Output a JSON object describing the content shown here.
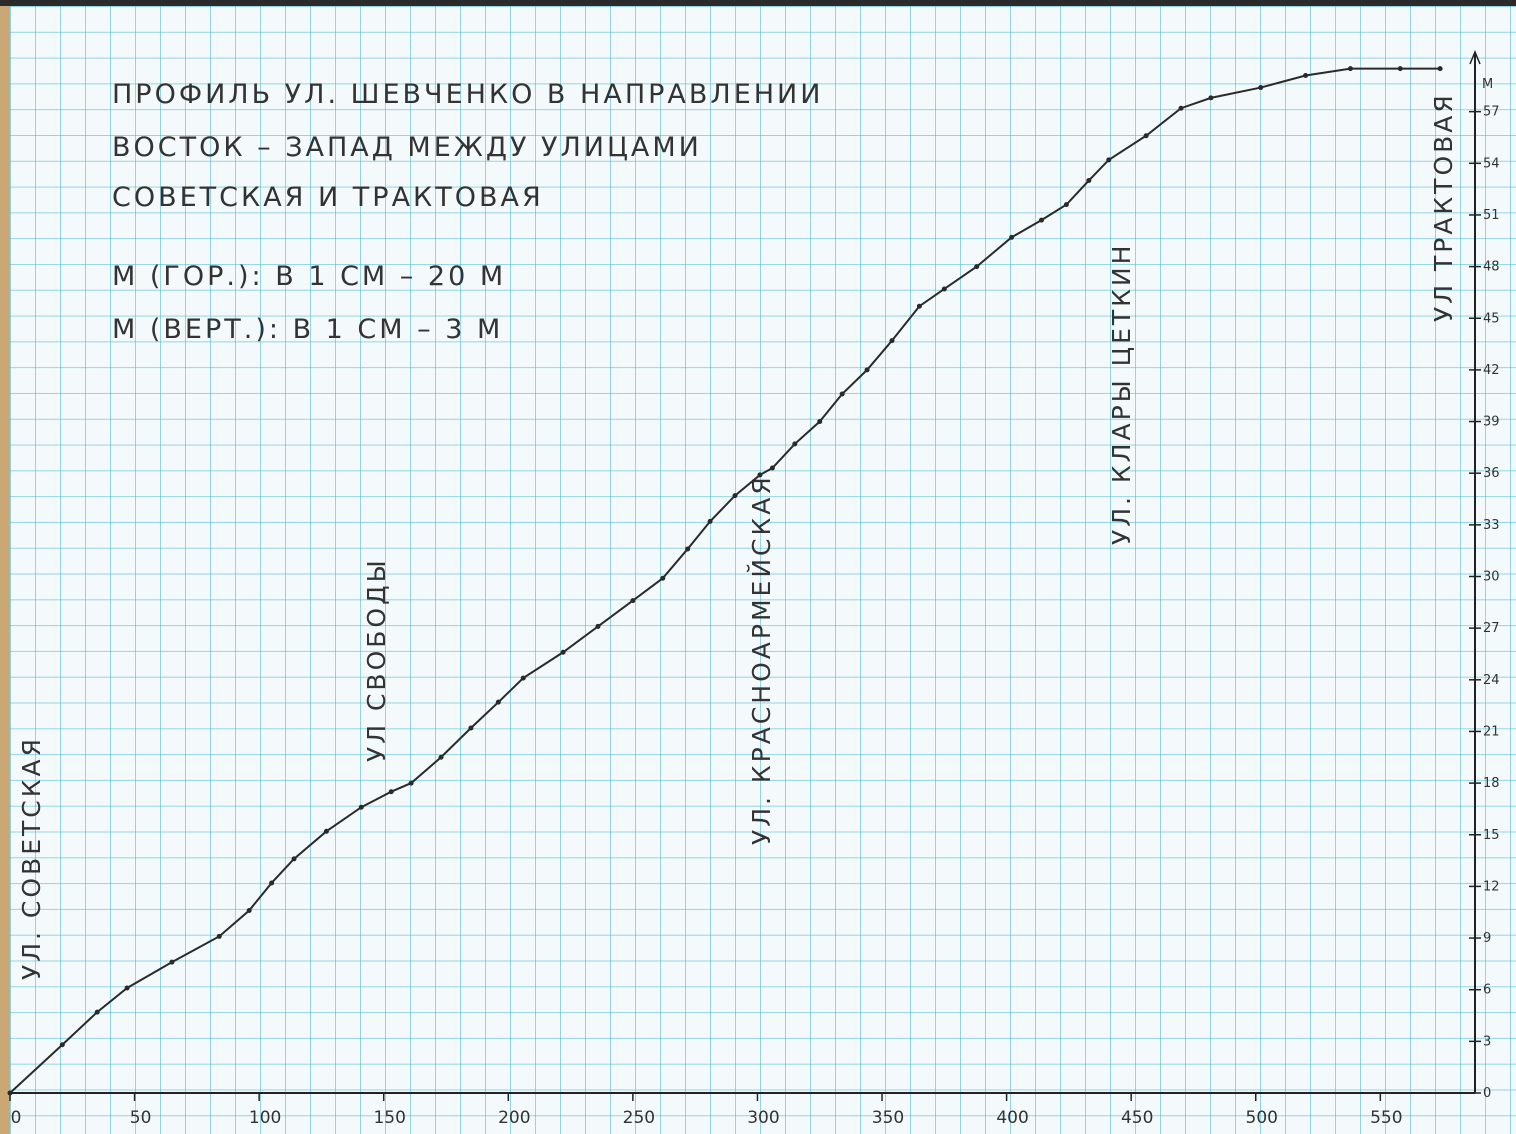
{
  "chart_data": {
    "type": "line",
    "title": [
      "ПРОФИЛЬ УЛ. ШЕВЧЕНКО В НАПРАВЛЕНИИ",
      "ВОСТОК – ЗАПАД МЕЖДУ УЛИЦАМИ",
      "СОВЕТСКАЯ И ТРАКТОВАЯ"
    ],
    "notes": [
      "М (ГОР.): В 1 СМ – 20 М",
      "М (ВЕРТ.): В 1 СМ – 3 М"
    ],
    "annotations": [
      "УЛ. СОВЕТСКАЯ",
      "УЛ СВОБОДЫ",
      "УЛ. КРАСНОАРМЕЙСКАЯ",
      "УЛ. КЛАРЫ ЦЕТКИН",
      "УЛ ТРАКТОВАЯ"
    ],
    "ylabel": "М",
    "color": "#2a2a2a",
    "x": [
      0,
      21,
      35,
      47,
      65,
      84,
      96,
      105,
      114,
      127,
      141,
      153,
      161,
      173,
      185,
      196,
      206,
      222,
      236,
      250,
      262,
      272,
      281,
      291,
      301,
      306,
      315,
      325,
      334,
      344,
      354,
      365,
      375,
      388,
      402,
      414,
      424,
      433,
      441,
      456,
      470,
      482,
      502,
      520,
      538,
      558,
      574
    ],
    "values": [
      0,
      2.8,
      4.7,
      6.1,
      7.6,
      9.1,
      10.6,
      12.2,
      13.6,
      15.2,
      16.6,
      17.5,
      18,
      19.5,
      21.2,
      22.7,
      24.1,
      25.6,
      27.1,
      28.6,
      29.9,
      31.6,
      33.2,
      34.7,
      35.9,
      36.3,
      37.7,
      39,
      40.6,
      42,
      43.7,
      45.7,
      46.7,
      48,
      49.7,
      50.7,
      51.6,
      53,
      54.2,
      55.6,
      57.2,
      57.8,
      58.4,
      59.1,
      59.5,
      59.5,
      59.5
    ],
    "xlim": [
      0,
      588
    ],
    "ylim": [
      0,
      60
    ],
    "xticks": [
      0,
      50,
      100,
      150,
      200,
      250,
      300,
      350,
      400,
      450,
      500,
      550
    ],
    "yticks": [
      0,
      3,
      6,
      9,
      12,
      15,
      18,
      21,
      24,
      27,
      30,
      33,
      36,
      39,
      42,
      45,
      48,
      51,
      54,
      57
    ]
  }
}
